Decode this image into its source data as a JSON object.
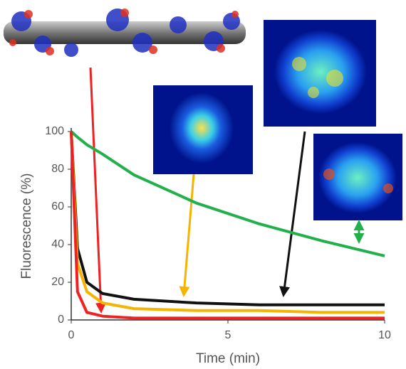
{
  "chart_data": {
    "type": "line",
    "x_label": "Time (min)",
    "y_label": "Fluorescence (%)",
    "x": [
      0,
      0.2,
      0.5,
      1,
      2,
      4,
      6,
      8,
      10
    ],
    "series": [
      {
        "color": "#22b04c",
        "values": [
          100,
          97,
          93,
          88,
          77,
          62,
          51,
          42,
          34
        ]
      },
      {
        "color": "#111111",
        "values": [
          100,
          38,
          20,
          14,
          11,
          9,
          8,
          8,
          8
        ]
      },
      {
        "color": "#f5b400",
        "values": [
          100,
          30,
          15,
          9,
          6,
          5,
          5,
          4,
          4
        ]
      },
      {
        "color": "#ee2222",
        "values": [
          100,
          15,
          4,
          2,
          1,
          1,
          1,
          1,
          1
        ]
      }
    ],
    "xlim": [
      0,
      10
    ],
    "xticks": [
      0,
      5,
      10
    ],
    "ylim": [
      0,
      100
    ],
    "yticks": [
      0,
      20,
      40,
      60,
      80,
      100
    ]
  }
}
